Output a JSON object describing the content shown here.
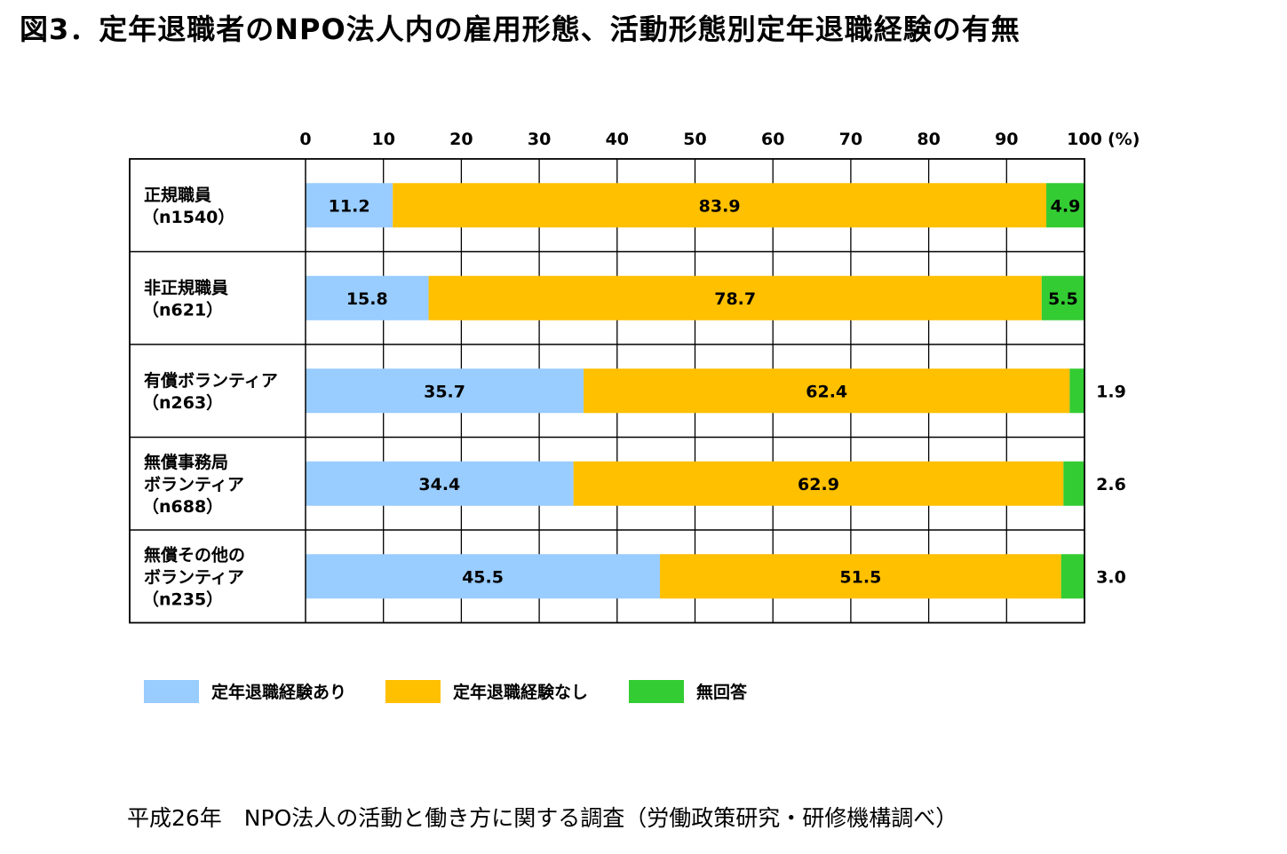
{
  "title": "図3．定年退職者のNPO法人内の雇用形態、活動形態別定年退職経験の有無",
  "source": "平成26年　NPO法人の活動と働き方に関する調査（労働政策研究・研修機構調べ）",
  "chart_data": {
    "type": "bar",
    "orientation": "horizontal",
    "stacked": true,
    "xlim": [
      0,
      100
    ],
    "x_ticks": [
      "0",
      "10",
      "20",
      "30",
      "40",
      "50",
      "60",
      "70",
      "80",
      "90",
      "100"
    ],
    "x_unit": "(%)",
    "grid": true,
    "legend_position": "bottom",
    "categories": [
      [
        "正規職員",
        "（n1540）"
      ],
      [
        "非正規職員",
        "（n621）"
      ],
      [
        "有償ボランティア",
        "（n263）"
      ],
      [
        "無償事務局",
        "ボランティア",
        "（n688）"
      ],
      [
        "無償その他の",
        "ボランティア",
        "（n235）"
      ]
    ],
    "series": [
      {
        "name": "定年退職経験あり",
        "color": "#99ccff",
        "values": [
          11.2,
          15.8,
          35.7,
          34.4,
          45.5
        ]
      },
      {
        "name": "定年退職経験なし",
        "color": "#ffc000",
        "values": [
          83.9,
          78.7,
          62.4,
          62.9,
          51.5
        ]
      },
      {
        "name": "無回答",
        "color": "#33cc33",
        "values": [
          4.9,
          5.5,
          1.9,
          2.6,
          3.0
        ]
      }
    ],
    "value_labels": [
      [
        "11.2",
        "83.9",
        "4.9"
      ],
      [
        "15.8",
        "78.7",
        "5.5"
      ],
      [
        "35.7",
        "62.4",
        "1.9"
      ],
      [
        "34.4",
        "62.9",
        "2.6"
      ],
      [
        "45.5",
        "51.5",
        "3.0"
      ]
    ]
  }
}
